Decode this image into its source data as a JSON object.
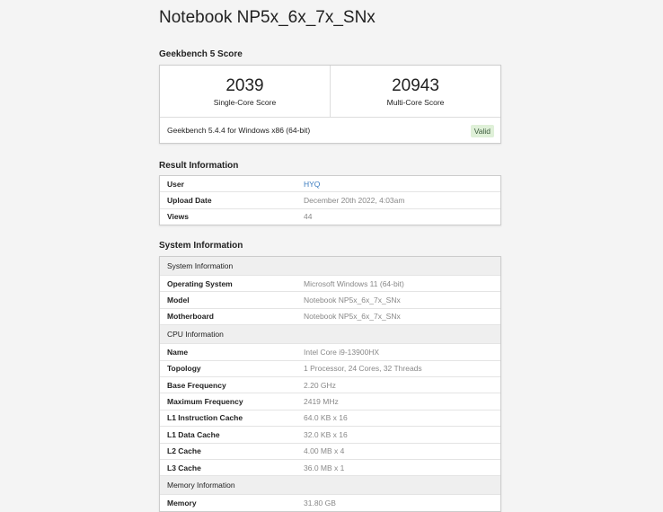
{
  "title": "Notebook NP5x_6x_7x_SNx",
  "score_section": {
    "heading": "Geekbench 5 Score",
    "single_value": "2039",
    "single_label": "Single-Core Score",
    "multi_value": "20943",
    "multi_label": "Multi-Core Score",
    "version": "Geekbench 5.4.4 for Windows x86 (64-bit)",
    "status": "Valid"
  },
  "result_section": {
    "heading": "Result Information",
    "rows": [
      {
        "key": "User",
        "value": "HYQ",
        "link": true
      },
      {
        "key": "Upload Date",
        "value": "December 20th 2022, 4:03am"
      },
      {
        "key": "Views",
        "value": "44"
      }
    ]
  },
  "system_section": {
    "heading": "System Information",
    "rows": [
      {
        "key": "System Information",
        "header": true
      },
      {
        "key": "Operating System",
        "value": "Microsoft Windows 11 (64-bit)"
      },
      {
        "key": "Model",
        "value": "Notebook NP5x_6x_7x_SNx"
      },
      {
        "key": "Motherboard",
        "value": "Notebook NP5x_6x_7x_SNx"
      },
      {
        "key": "CPU Information",
        "header": true
      },
      {
        "key": "Name",
        "value": "Intel Core i9-13900HX"
      },
      {
        "key": "Topology",
        "value": "1 Processor, 24 Cores, 32 Threads"
      },
      {
        "key": "Base Frequency",
        "value": "2.20 GHz"
      },
      {
        "key": "Maximum Frequency",
        "value": "2419 MHz"
      },
      {
        "key": "L1 Instruction Cache",
        "value": "64.0 KB x 16"
      },
      {
        "key": "L1 Data Cache",
        "value": "32.0 KB x 16"
      },
      {
        "key": "L2 Cache",
        "value": "4.00 MB x 4"
      },
      {
        "key": "L3 Cache",
        "value": "36.0 MB x 1"
      },
      {
        "key": "Memory Information",
        "header": true
      },
      {
        "key": "Memory",
        "value": "31.80 GB"
      }
    ]
  },
  "colors": {
    "link": "#3a7bbf",
    "valid_bg": "#dff0d8"
  }
}
